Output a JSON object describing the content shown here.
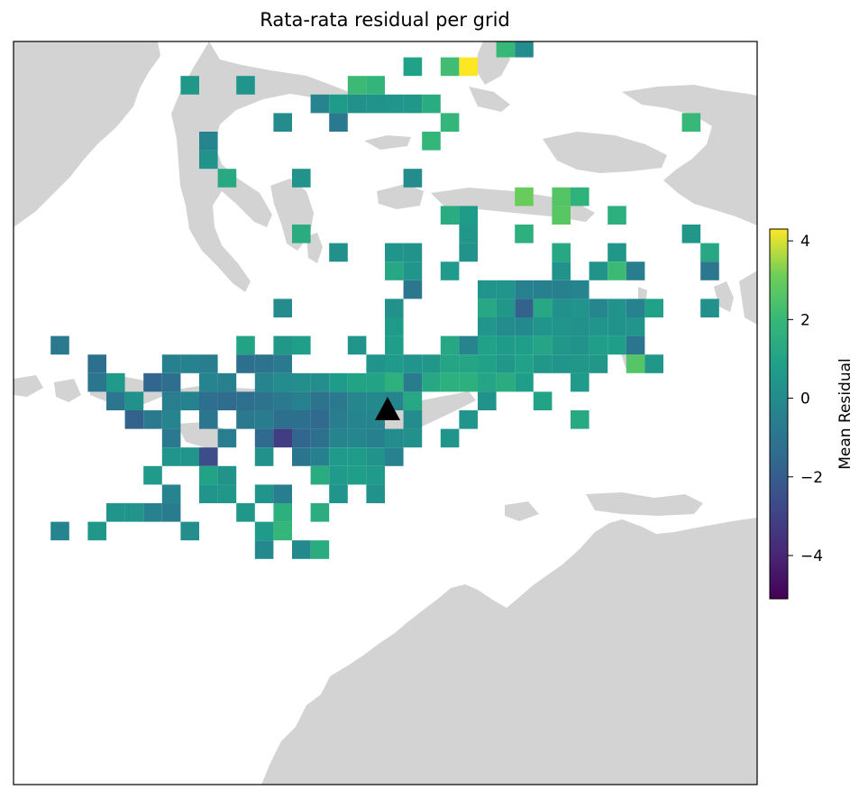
{
  "title": "Rata-rata residual per grid",
  "chart_data": {
    "type": "heatmap",
    "title": "Rata-rata residual per grid",
    "colormap": "viridis",
    "colorbar": {
      "label": "Mean Residual",
      "vmin": -5.1,
      "vmax": 4.3,
      "ticks": [
        4,
        2,
        0,
        -2,
        -4
      ],
      "tick_labels": [
        "4",
        "2",
        "0",
        "−2",
        "−4"
      ]
    },
    "station_marker": {
      "shape": "triangle",
      "color": "#000000",
      "col": 20,
      "row": 20
    },
    "land_color": "#d3d3d3",
    "grid_cells": [
      [
        21,
        1,
        0.9
      ],
      [
        23,
        1,
        2.2
      ],
      [
        24,
        1,
        4.3
      ],
      [
        26,
        0,
        2.0
      ],
      [
        27,
        0,
        0.0
      ],
      [
        9,
        2,
        0.5
      ],
      [
        12,
        2,
        0.4
      ],
      [
        18,
        2,
        2.1
      ],
      [
        19,
        2,
        1.8
      ],
      [
        16,
        3,
        -0.3
      ],
      [
        17,
        3,
        0.7
      ],
      [
        18,
        3,
        0.2
      ],
      [
        19,
        3,
        0.3
      ],
      [
        20,
        3,
        0.4
      ],
      [
        21,
        3,
        0.5
      ],
      [
        22,
        3,
        1.4
      ],
      [
        14,
        4,
        0.0
      ],
      [
        17,
        4,
        -0.8
      ],
      [
        23,
        4,
        1.9
      ],
      [
        36,
        4,
        2.0
      ],
      [
        10,
        5,
        -0.3
      ],
      [
        22,
        5,
        1.9
      ],
      [
        10,
        6,
        0.3
      ],
      [
        11,
        7,
        1.3
      ],
      [
        15,
        7,
        0.3
      ],
      [
        21,
        7,
        0.0
      ],
      [
        27,
        8,
        3.0
      ],
      [
        29,
        8,
        2.6
      ],
      [
        30,
        8,
        1.7
      ],
      [
        23,
        9,
        1.4
      ],
      [
        24,
        9,
        0.7
      ],
      [
        29,
        9,
        2.7
      ],
      [
        32,
        9,
        1.6
      ],
      [
        15,
        10,
        1.4
      ],
      [
        24,
        10,
        0.5
      ],
      [
        27,
        10,
        1.6
      ],
      [
        36,
        10,
        0.5
      ],
      [
        17,
        11,
        0.2
      ],
      [
        20,
        11,
        0.4
      ],
      [
        21,
        11,
        0.3
      ],
      [
        24,
        11,
        0.3
      ],
      [
        29,
        11,
        1.2
      ],
      [
        32,
        11,
        0.5
      ],
      [
        37,
        11,
        1.2
      ],
      [
        20,
        12,
        1.2
      ],
      [
        21,
        12,
        0.4
      ],
      [
        23,
        12,
        0.6
      ],
      [
        29,
        12,
        0.3
      ],
      [
        31,
        12,
        0.3
      ],
      [
        32,
        12,
        2.1
      ],
      [
        33,
        12,
        -0.6
      ],
      [
        37,
        12,
        -0.9
      ],
      [
        21,
        13,
        -0.9
      ],
      [
        25,
        13,
        0.4
      ],
      [
        26,
        13,
        0.4
      ],
      [
        27,
        13,
        -0.5
      ],
      [
        28,
        13,
        -0.5
      ],
      [
        29,
        13,
        -0.5
      ],
      [
        30,
        13,
        -0.3
      ],
      [
        14,
        14,
        0.0
      ],
      [
        20,
        14,
        0.2
      ],
      [
        25,
        14,
        1.2
      ],
      [
        26,
        14,
        0.5
      ],
      [
        27,
        14,
        -1.8
      ],
      [
        28,
        14,
        1.2
      ],
      [
        29,
        14,
        0.2
      ],
      [
        30,
        14,
        0.4
      ],
      [
        31,
        14,
        -0.2
      ],
      [
        32,
        14,
        0.3
      ],
      [
        33,
        14,
        -0.4
      ],
      [
        34,
        14,
        0.9
      ],
      [
        37,
        14,
        0.2
      ],
      [
        20,
        15,
        0.7
      ],
      [
        25,
        15,
        0.4
      ],
      [
        26,
        15,
        0.0
      ],
      [
        27,
        15,
        -0.1
      ],
      [
        28,
        15,
        0.4
      ],
      [
        29,
        15,
        0.4
      ],
      [
        30,
        15,
        0.2
      ],
      [
        31,
        15,
        0.4
      ],
      [
        32,
        15,
        0.3
      ],
      [
        33,
        15,
        0.4
      ],
      [
        2,
        16,
        -0.8
      ],
      [
        12,
        16,
        1.0
      ],
      [
        14,
        16,
        0.5
      ],
      [
        15,
        16,
        0.8
      ],
      [
        18,
        16,
        0.4
      ],
      [
        20,
        16,
        0.8
      ],
      [
        23,
        16,
        1.2
      ],
      [
        24,
        16,
        -0.3
      ],
      [
        25,
        16,
        0.9
      ],
      [
        26,
        16,
        0.7
      ],
      [
        27,
        16,
        0.8
      ],
      [
        28,
        16,
        1.1
      ],
      [
        29,
        16,
        0.5
      ],
      [
        30,
        16,
        0.3
      ],
      [
        31,
        16,
        0.8
      ],
      [
        32,
        16,
        0.8
      ],
      [
        33,
        16,
        -1.0
      ],
      [
        4,
        17,
        -1.2
      ],
      [
        8,
        17,
        -0.5
      ],
      [
        9,
        17,
        -0.4
      ],
      [
        10,
        17,
        -0.6
      ],
      [
        12,
        17,
        -1.2
      ],
      [
        13,
        17,
        -1.1
      ],
      [
        14,
        17,
        -0.8
      ],
      [
        19,
        17,
        0.4
      ],
      [
        20,
        17,
        0.6
      ],
      [
        21,
        17,
        0.4
      ],
      [
        22,
        17,
        0.5
      ],
      [
        23,
        17,
        1.1
      ],
      [
        24,
        17,
        1.1
      ],
      [
        25,
        17,
        0.9
      ],
      [
        26,
        17,
        0.5
      ],
      [
        27,
        17,
        0.9
      ],
      [
        28,
        17,
        0.5
      ],
      [
        29,
        17,
        0.4
      ],
      [
        30,
        17,
        0.5
      ],
      [
        31,
        17,
        0.5
      ],
      [
        33,
        17,
        2.6
      ],
      [
        34,
        17,
        0.5
      ],
      [
        4,
        18,
        -1.0
      ],
      [
        5,
        18,
        0.6
      ],
      [
        7,
        18,
        -1.6
      ],
      [
        8,
        18,
        -1.3
      ],
      [
        10,
        18,
        -0.3
      ],
      [
        11,
        18,
        -0.5
      ],
      [
        13,
        18,
        -0.3
      ],
      [
        14,
        18,
        0.0
      ],
      [
        15,
        18,
        0.1
      ],
      [
        16,
        18,
        0.1
      ],
      [
        17,
        18,
        0.7
      ],
      [
        18,
        18,
        1.0
      ],
      [
        19,
        18,
        1.0
      ],
      [
        20,
        18,
        1.6
      ],
      [
        21,
        18,
        -0.7
      ],
      [
        22,
        18,
        1.2
      ],
      [
        23,
        18,
        1.6
      ],
      [
        24,
        18,
        1.6
      ],
      [
        25,
        18,
        1.1
      ],
      [
        26,
        18,
        1.4
      ],
      [
        27,
        18,
        0.8
      ],
      [
        30,
        18,
        0.6
      ],
      [
        5,
        19,
        -1.0
      ],
      [
        6,
        19,
        0.2
      ],
      [
        8,
        19,
        -0.6
      ],
      [
        9,
        19,
        -0.4
      ],
      [
        10,
        19,
        -1.3
      ],
      [
        11,
        19,
        -1.4
      ],
      [
        12,
        19,
        -1.3
      ],
      [
        13,
        19,
        -1.1
      ],
      [
        14,
        19,
        -0.8
      ],
      [
        15,
        19,
        -0.5
      ],
      [
        16,
        19,
        -1.1
      ],
      [
        17,
        19,
        -0.8
      ],
      [
        18,
        19,
        -0.2
      ],
      [
        19,
        19,
        -0.1
      ],
      [
        20,
        19,
        -0.3
      ],
      [
        21,
        19,
        1.2
      ],
      [
        25,
        19,
        0.3
      ],
      [
        28,
        19,
        1.0
      ],
      [
        6,
        20,
        -1.8
      ],
      [
        7,
        20,
        -0.8
      ],
      [
        8,
        20,
        -0.3
      ],
      [
        10,
        20,
        -1.0
      ],
      [
        12,
        20,
        -0.8
      ],
      [
        13,
        20,
        -0.7
      ],
      [
        14,
        20,
        -1.2
      ],
      [
        15,
        20,
        -1.2
      ],
      [
        16,
        20,
        -1.5
      ],
      [
        17,
        20,
        -0.6
      ],
      [
        18,
        20,
        -0.3
      ],
      [
        19,
        20,
        -0.3
      ],
      [
        21,
        20,
        0.0
      ],
      [
        24,
        20,
        0.4
      ],
      [
        30,
        20,
        1.3
      ],
      [
        8,
        21,
        -0.8
      ],
      [
        11,
        21,
        -0.6
      ],
      [
        13,
        21,
        -1.5
      ],
      [
        14,
        21,
        -3.2
      ],
      [
        15,
        21,
        -1.6
      ],
      [
        16,
        21,
        -1.2
      ],
      [
        17,
        21,
        -0.3
      ],
      [
        18,
        21,
        -0.2
      ],
      [
        19,
        21,
        -0.5
      ],
      [
        20,
        21,
        0.0
      ],
      [
        21,
        21,
        0.2
      ],
      [
        23,
        21,
        0.4
      ],
      [
        8,
        22,
        0.4
      ],
      [
        9,
        22,
        0.4
      ],
      [
        10,
        22,
        -2.6
      ],
      [
        13,
        22,
        0.2
      ],
      [
        15,
        22,
        -1.0
      ],
      [
        16,
        22,
        -0.5
      ],
      [
        17,
        22,
        0.6
      ],
      [
        18,
        22,
        0.7
      ],
      [
        19,
        22,
        0.3
      ],
      [
        20,
        22,
        -0.4
      ],
      [
        7,
        23,
        0.6
      ],
      [
        10,
        23,
        1.0
      ],
      [
        11,
        23,
        0.3
      ],
      [
        16,
        23,
        1.4
      ],
      [
        17,
        23,
        0.6
      ],
      [
        18,
        23,
        0.8
      ],
      [
        19,
        23,
        0.6
      ],
      [
        8,
        24,
        -0.3
      ],
      [
        10,
        24,
        0.4
      ],
      [
        11,
        24,
        0.5
      ],
      [
        13,
        24,
        0.4
      ],
      [
        14,
        24,
        -0.6
      ],
      [
        17,
        24,
        0.4
      ],
      [
        19,
        24,
        0.3
      ],
      [
        5,
        25,
        0.4
      ],
      [
        6,
        25,
        0.4
      ],
      [
        7,
        25,
        -0.4
      ],
      [
        8,
        25,
        -0.7
      ],
      [
        12,
        25,
        0.5
      ],
      [
        14,
        25,
        1.6
      ],
      [
        16,
        25,
        1.5
      ],
      [
        2,
        26,
        -0.3
      ],
      [
        4,
        26,
        0.5
      ],
      [
        9,
        26,
        0.1
      ],
      [
        13,
        26,
        0.6
      ],
      [
        14,
        26,
        1.9
      ],
      [
        13,
        27,
        -0.1
      ],
      [
        15,
        27,
        -0.1
      ],
      [
        16,
        27,
        1.4
      ]
    ]
  }
}
